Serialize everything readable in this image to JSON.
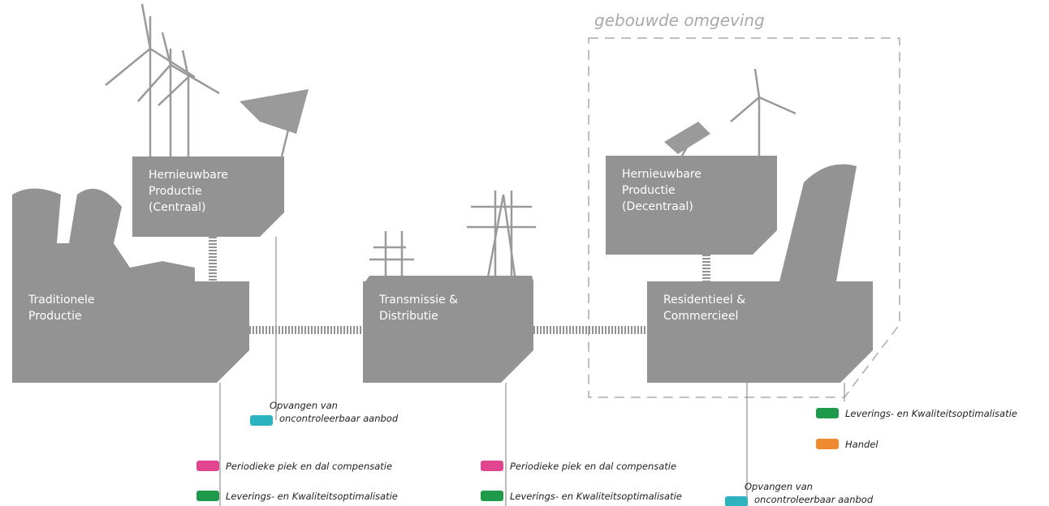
{
  "region": "gebouwde omgeving",
  "nodes": [
    {
      "lines": [
        "Hernieuwbare",
        "Productie",
        "(Centraal)"
      ]
    },
    {
      "lines": [
        "Traditionele",
        "Productie"
      ]
    },
    {
      "lines": [
        "Transmissie &",
        "Distributie"
      ]
    },
    {
      "lines": [
        "Hernieuwbare",
        "Productie",
        "(Decentraal)"
      ]
    },
    {
      "lines": [
        "Residentieel &",
        "Commercieel"
      ]
    }
  ],
  "labels": [
    {
      "color": "#2bb3c0",
      "lines": [
        "Opvangen van",
        "oncontroleerbaar aanbod"
      ]
    },
    {
      "color": "#e0458f",
      "lines": [
        "Periodieke piek en dal compensatie"
      ]
    },
    {
      "color": "#1f9a4a",
      "lines": [
        "Leverings- en Kwaliteitsoptimalisatie"
      ]
    },
    {
      "color": "#e0458f",
      "lines": [
        "Periodieke piek en dal compensatie"
      ]
    },
    {
      "color": "#1f9a4a",
      "lines": [
        "Leverings- en Kwaliteitsoptimalisatie"
      ]
    },
    {
      "color": "#1f9a4a",
      "lines": [
        "Leverings- en Kwaliteitsoptimalisatie"
      ]
    },
    {
      "color": "#f08a30",
      "lines": [
        "Handel"
      ]
    },
    {
      "color": "#2bb3c0",
      "lines": [
        "Opvangen van",
        "oncontroleerbaar aanbod"
      ]
    }
  ]
}
